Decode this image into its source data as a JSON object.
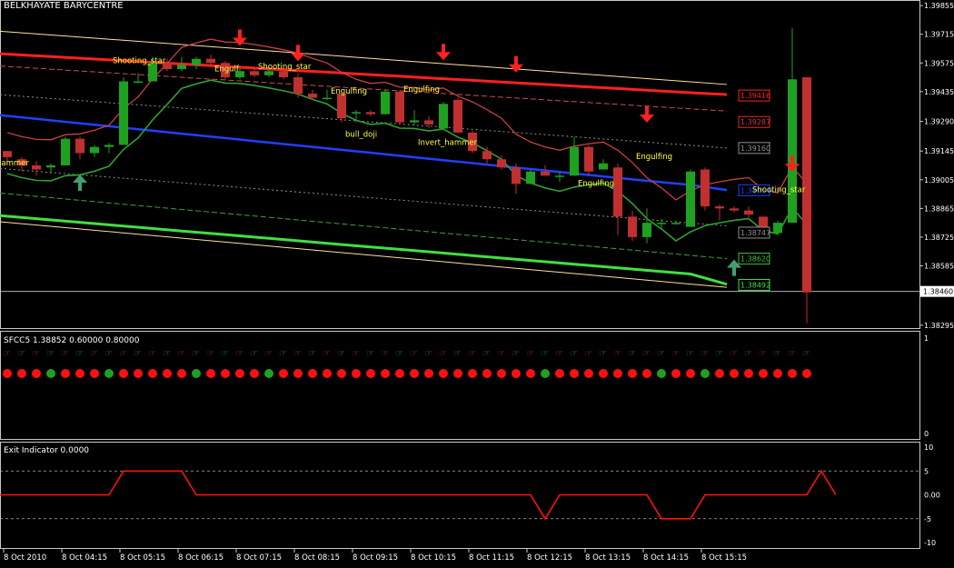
{
  "window": {
    "title": "BELKHAYATE BARYCENTRE",
    "indicator1_label": "SFCC5 1.38852 0.60000 0.80000",
    "indicator2_label": "Exit Indicator 0.0000"
  },
  "chart_data": [
    {
      "type": "candlestick",
      "title": "BELKHAYATE BARYCENTRE",
      "y_ticks": [
        "1.39855",
        "1.39715",
        "1.39575",
        "1.39435",
        "1.39290",
        "1.39145",
        "1.39005",
        "1.38865",
        "1.38725",
        "1.38585",
        "1.38460",
        "1.38295"
      ],
      "ylim": [
        1.3829,
        1.3986
      ],
      "current_price": "1.38460",
      "x_ticks": [
        "8 Oct 2010",
        "8 Oct 04:15",
        "8 Oct 05:15",
        "8 Oct 06:15",
        "8 Oct 07:15",
        "8 Oct 08:15",
        "8 Oct 09:15",
        "8 Oct 10:15",
        "8 Oct 11:15",
        "8 Oct 12:15",
        "8 Oct 13:15",
        "8 Oct 14:15",
        "8 Oct 15:15"
      ],
      "candles": [
        [
          1.39145,
          1.39145,
          1.39075,
          1.39115
        ],
        [
          1.39105,
          1.39115,
          1.39045,
          1.39075
        ],
        [
          1.39075,
          1.39095,
          1.39025,
          1.39055
        ],
        [
          1.39065,
          1.39085,
          1.39035,
          1.39075
        ],
        [
          1.39075,
          1.39215,
          1.39075,
          1.39205
        ],
        [
          1.39205,
          1.39215,
          1.39105,
          1.39135
        ],
        [
          1.39135,
          1.39175,
          1.39115,
          1.39165
        ],
        [
          1.39165,
          1.39185,
          1.39135,
          1.39175
        ],
        [
          1.39175,
          1.39505,
          1.39175,
          1.39485
        ],
        [
          1.39485,
          1.39525,
          1.39475,
          1.39485
        ],
        [
          1.39485,
          1.39605,
          1.39485,
          1.39575
        ],
        [
          1.39575,
          1.39595,
          1.39535,
          1.39545
        ],
        [
          1.39545,
          1.39605,
          1.39535,
          1.39565
        ],
        [
          1.39565,
          1.39605,
          1.39545,
          1.39595
        ],
        [
          1.39595,
          1.39615,
          1.39555,
          1.39575
        ],
        [
          1.39575,
          1.39585,
          1.39495,
          1.39505
        ],
        [
          1.39505,
          1.39555,
          1.39495,
          1.39535
        ],
        [
          1.39535,
          1.39555,
          1.39505,
          1.39515
        ],
        [
          1.39515,
          1.39555,
          1.39505,
          1.39535
        ],
        [
          1.39535,
          1.39545,
          1.39495,
          1.39505
        ],
        [
          1.39505,
          1.39525,
          1.39405,
          1.39425
        ],
        [
          1.39425,
          1.39445,
          1.39395,
          1.39405
        ],
        [
          1.39405,
          1.39445,
          1.39395,
          1.39405
        ],
        [
          1.39425,
          1.39445,
          1.39285,
          1.39305
        ],
        [
          1.39335,
          1.39345,
          1.39285,
          1.39335
        ],
        [
          1.39335,
          1.39345,
          1.39315,
          1.39325
        ],
        [
          1.39325,
          1.39445,
          1.39325,
          1.39435
        ],
        [
          1.39435,
          1.39445,
          1.39275,
          1.39285
        ],
        [
          1.39285,
          1.39345,
          1.39275,
          1.39295
        ],
        [
          1.39295,
          1.39315,
          1.39255,
          1.39275
        ],
        [
          1.39255,
          1.39385,
          1.39255,
          1.39375
        ],
        [
          1.39395,
          1.39405,
          1.39235,
          1.39235
        ],
        [
          1.39235,
          1.39245,
          1.39135,
          1.39145
        ],
        [
          1.39145,
          1.39165,
          1.39085,
          1.39105
        ],
        [
          1.39105,
          1.39125,
          1.39055,
          1.39065
        ],
        [
          1.39065,
          1.39085,
          1.38935,
          1.38985
        ],
        [
          1.38985,
          1.39055,
          1.38985,
          1.39045
        ],
        [
          1.39045,
          1.39075,
          1.39025,
          1.39025
        ],
        [
          1.39025,
          1.39045,
          1.38995,
          1.39025
        ],
        [
          1.39025,
          1.39215,
          1.39025,
          1.39165
        ],
        [
          1.39165,
          1.39175,
          1.39025,
          1.39045
        ],
        [
          1.39055,
          1.39105,
          1.39055,
          1.39085
        ],
        [
          1.39065,
          1.39085,
          1.38735,
          1.38825
        ],
        [
          1.38825,
          1.38855,
          1.38705,
          1.38725
        ],
        [
          1.38725,
          1.38865,
          1.38695,
          1.38795
        ],
        [
          1.38795,
          1.38815,
          1.38765,
          1.38795
        ],
        [
          1.38795,
          1.38805,
          1.38785,
          1.38795
        ],
        [
          1.38775,
          1.39055,
          1.38775,
          1.39045
        ],
        [
          1.39055,
          1.39065,
          1.38855,
          1.38875
        ],
        [
          1.38875,
          1.38885,
          1.38805,
          1.38865
        ],
        [
          1.38865,
          1.38875,
          1.38845,
          1.38855
        ],
        [
          1.38855,
          1.38875,
          1.38815,
          1.38835
        ],
        [
          1.38825,
          1.38825,
          1.38765,
          1.38755
        ],
        [
          1.38745,
          1.38805,
          1.38745,
          1.38795
        ],
        [
          1.38795,
          1.39745,
          1.38795,
          1.39495
        ],
        [
          1.39505,
          1.39505,
          1.38305,
          1.38455
        ]
      ],
      "series": [
        {
          "name": "",
          "color": "#ff2020",
          "values": [
            1.3962,
            1.3961,
            1.396,
            1.3959,
            1.3958,
            1.3957,
            1.3956,
            1.3955,
            1.3954,
            1.3953,
            1.3952,
            1.3951,
            1.395,
            1.3949,
            1.3948,
            1.3947,
            1.3946,
            1.3945,
            1.3944,
            1.3943,
            1.39421
          ]
        },
        {
          "name": "",
          "color": "#2040ff",
          "values": [
            1.3932,
            1.39302,
            1.39284,
            1.39266,
            1.39248,
            1.3923,
            1.39212,
            1.39194,
            1.39176,
            1.39158,
            1.3914,
            1.39122,
            1.39104,
            1.39086,
            1.39068,
            1.3905,
            1.39032,
            1.39014,
            1.38996,
            1.3898,
            1.38955
          ]
        },
        {
          "name": "",
          "color": "#40e040",
          "values": [
            1.3883,
            1.38815,
            1.388,
            1.38785,
            1.3877,
            1.38755,
            1.3874,
            1.38725,
            1.3871,
            1.38695,
            1.3868,
            1.38665,
            1.3865,
            1.38635,
            1.3862,
            1.38605,
            1.3859,
            1.38575,
            1.3856,
            1.38545,
            1.38495
          ]
        }
      ],
      "price_labels": [
        {
          "value": "1.39416",
          "price": 1.39416,
          "color": "#ff2020"
        },
        {
          "value": "1.39287",
          "price": 1.39287,
          "color": "#e03030"
        },
        {
          "value": "1.39160",
          "price": 1.3916,
          "color": "#909090"
        },
        {
          "value": "1.38954",
          "price": 1.38954,
          "color": "#2040ff"
        },
        {
          "value": "1.38747",
          "price": 1.38747,
          "color": "#909090"
        },
        {
          "value": "1.38620",
          "price": 1.3862,
          "color": "#40c040"
        },
        {
          "value": "1.38492",
          "price": 1.38492,
          "color": "#40e040"
        }
      ],
      "pattern_labels": [
        {
          "text": "Shooting_star",
          "idx": 8,
          "price": 1.39575,
          "color": "#ffff40"
        },
        {
          "text": "Engulf",
          "idx": 15,
          "price": 1.39535,
          "color": "#ffff40"
        },
        {
          "text": "Shooting_star",
          "idx": 18,
          "price": 1.39545,
          "color": "#ffff40"
        },
        {
          "text": "Engulfing",
          "idx": 23,
          "price": 1.39425,
          "color": "#ffff40"
        },
        {
          "text": "Engulfing",
          "idx": 28,
          "price": 1.39435,
          "color": "#ffff40"
        },
        {
          "text": "bull_doji",
          "idx": 24,
          "price": 1.39215,
          "color": "#ffff40"
        },
        {
          "text": "Invert_hammer",
          "idx": 29,
          "price": 1.39175,
          "color": "#ffff40"
        },
        {
          "text": "hammer",
          "idx": 0,
          "price": 1.39075,
          "color": "#ffff40"
        },
        {
          "text": "Engulfing",
          "idx": 44,
          "price": 1.39105,
          "color": "#ffff40"
        },
        {
          "text": "Engulfing",
          "idx": 40,
          "price": 1.38975,
          "color": "#ffff40"
        },
        {
          "text": "Shooting_star",
          "idx": 52,
          "price": 1.38945,
          "color": "#ffff40"
        }
      ],
      "down_arrows": [
        {
          "idx": 16,
          "price": 1.39685,
          "color": "#ff2020"
        },
        {
          "idx": 20,
          "price": 1.3961,
          "color": "#ff2020"
        },
        {
          "idx": 30,
          "price": 1.39615,
          "color": "#ff2020"
        },
        {
          "idx": 35,
          "price": 1.39555,
          "color": "#ff2020"
        },
        {
          "idx": 44,
          "price": 1.3931,
          "color": "#ff2020"
        },
        {
          "idx": 54,
          "price": 1.3907,
          "color": "#ff2020"
        }
      ],
      "up_arrows": [
        {
          "idx": 5,
          "price": 1.38995,
          "color": "#40a070"
        },
        {
          "idx": 50,
          "price": 1.3858,
          "color": "#40a070"
        }
      ]
    },
    {
      "type": "dots",
      "title": "SFCC5 1.38852 0.60000 0.80000",
      "y_ticks": [
        "1",
        "0"
      ],
      "ylim": [
        0,
        1
      ],
      "dot_colors": [
        "R",
        "R",
        "R",
        "G",
        "R",
        "R",
        "R",
        "G",
        "R",
        "R",
        "R",
        "R",
        "R",
        "G",
        "R",
        "R",
        "R",
        "R",
        "G",
        "R",
        "R",
        "R",
        "R",
        "R",
        "R",
        "R",
        "R",
        "R",
        "R",
        "R",
        "R",
        "R",
        "R",
        "R",
        "R",
        "R",
        "R",
        "G",
        "R",
        "R",
        "R",
        "R",
        "R",
        "R",
        "R",
        "G",
        "R",
        "R",
        "G",
        "R",
        "R",
        "R",
        "R",
        "R",
        "R",
        "R"
      ]
    },
    {
      "type": "line",
      "title": "Exit Indicator 0.0000",
      "y_ticks": [
        "10",
        "5",
        "0.00",
        "-5",
        "-10"
      ],
      "ylim": [
        -10,
        10
      ],
      "levels": [
        5,
        -5
      ],
      "values": [
        0,
        0,
        0,
        0,
        0,
        0,
        0,
        0,
        5,
        5,
        5,
        5,
        5,
        0,
        0,
        0,
        0,
        0,
        0,
        0,
        0,
        0,
        0,
        0,
        0,
        0,
        0,
        0,
        0,
        0,
        0,
        0,
        0,
        0,
        0,
        0,
        0,
        -5,
        0,
        0,
        0,
        0,
        0,
        0,
        0,
        -5,
        -5,
        -5,
        0,
        0,
        0,
        0,
        0,
        0,
        0,
        0,
        5,
        0
      ]
    }
  ]
}
